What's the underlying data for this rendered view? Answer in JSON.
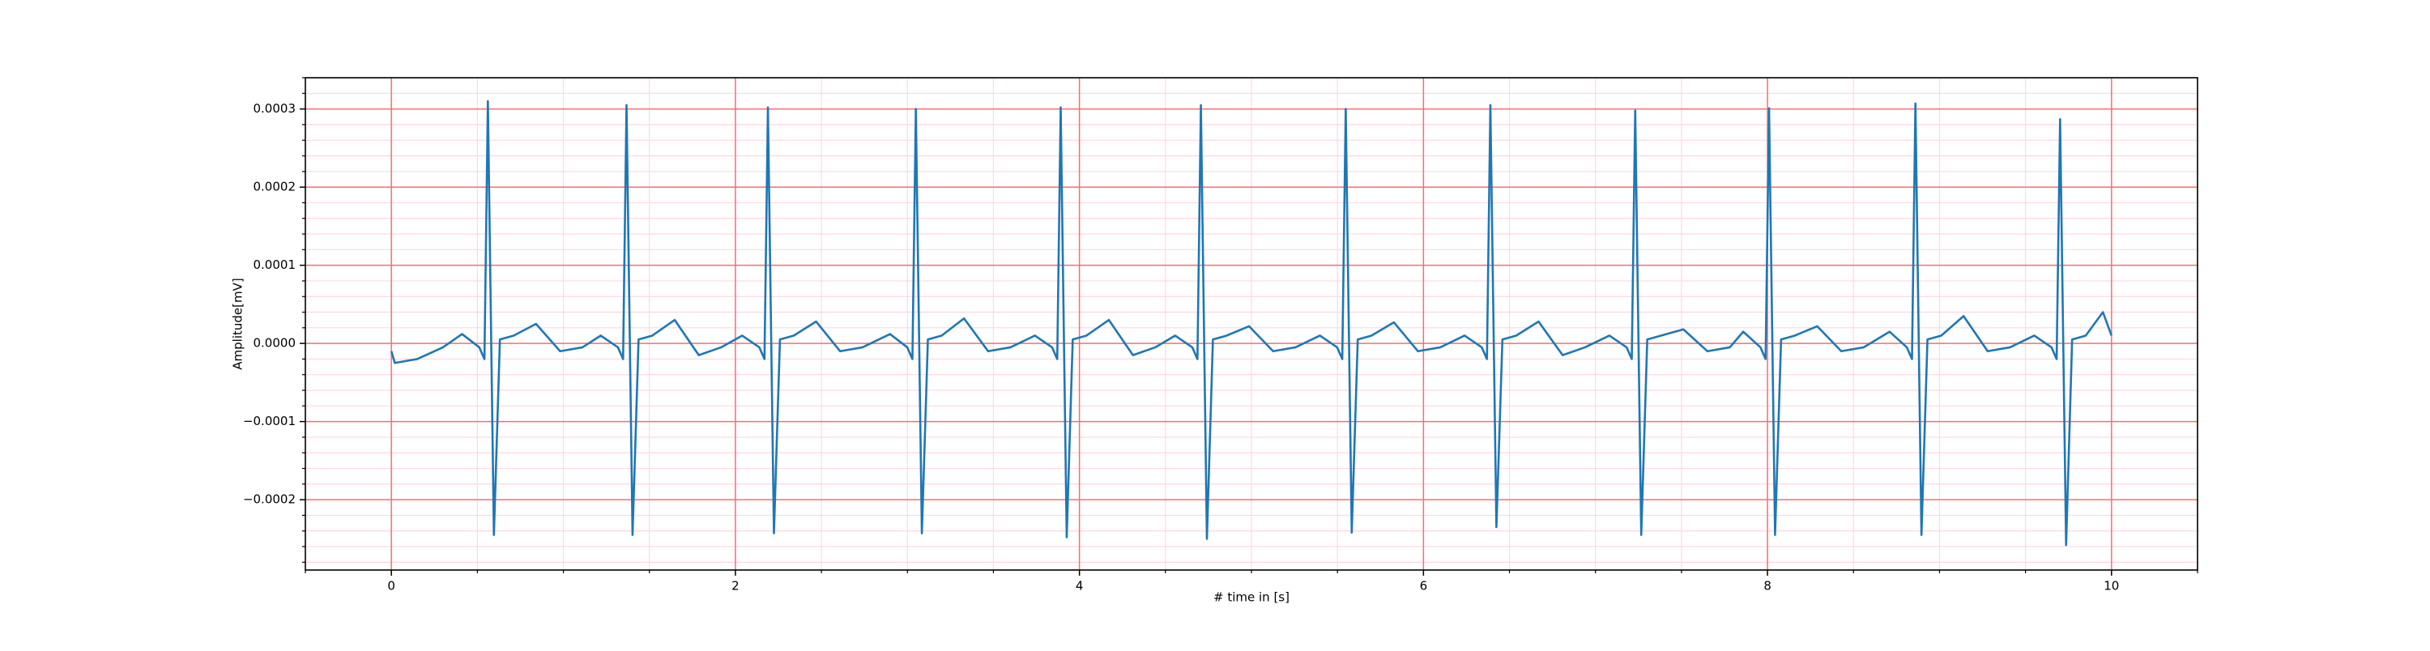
{
  "chart_data": {
    "type": "line",
    "xlabel": "# time in [s]",
    "ylabel": "Amplitude[mV]",
    "color": "#1f77b4",
    "xlim": [
      -0.5,
      10.5
    ],
    "ylim": [
      -0.00029,
      0.00034
    ],
    "xticks": [
      0,
      2,
      4,
      6,
      8,
      10
    ],
    "yticks": [
      {
        "value": -0.0002,
        "label": "−0.0002"
      },
      {
        "value": -0.0001,
        "label": "−0.0001"
      },
      {
        "value": 0,
        "label": "0.0000"
      },
      0.0001,
      0.0002,
      0.0003
    ],
    "xticks_minor": [
      -0.5,
      0.5,
      1,
      1.5,
      2.5,
      3,
      3.5,
      4.5,
      5,
      5.5,
      6.5,
      7,
      7.5,
      8.5,
      9,
      9.5,
      10.5
    ],
    "yticks_minor": [
      -0.00028,
      -0.00026,
      -0.00024,
      -0.00022,
      -0.00018,
      -0.00016,
      -0.00014,
      -0.00012,
      -8e-05,
      -6e-05,
      -4e-05,
      -2e-05,
      2e-05,
      4e-05,
      6e-05,
      8e-05,
      0.00012,
      0.00014,
      0.00016,
      0.00018,
      0.00022,
      0.00024,
      0.00026,
      0.00028,
      0.00032,
      0.00034
    ],
    "grid": true,
    "minor_grid": true,
    "grid_color": "#ff6b6b",
    "minor_grid_color": "#ffd6e6",
    "x": [
      0,
      0.02,
      0.15,
      0.3,
      0.411,
      0.511,
      0.541,
      0.561,
      0.596,
      0.631,
      0.711,
      0.841,
      0.981,
      1.111,
      1.217,
      1.317,
      1.347,
      1.367,
      1.402,
      1.437,
      1.517,
      1.647,
      1.787,
      1.917,
      2.039,
      2.139,
      2.169,
      2.189,
      2.224,
      2.259,
      2.339,
      2.469,
      2.609,
      2.739,
      2.899,
      2.999,
      3.029,
      3.049,
      3.084,
      3.119,
      3.199,
      3.329,
      3.469,
      3.599,
      3.741,
      3.841,
      3.871,
      3.891,
      3.926,
      3.961,
      4.041,
      4.171,
      4.311,
      4.441,
      4.556,
      4.656,
      4.686,
      4.706,
      4.741,
      4.776,
      4.856,
      4.986,
      5.126,
      5.256,
      5.398,
      5.498,
      5.528,
      5.548,
      5.583,
      5.618,
      5.698,
      5.828,
      5.968,
      6.098,
      6.239,
      6.339,
      6.369,
      6.389,
      6.424,
      6.459,
      6.539,
      6.669,
      6.809,
      6.939,
      7.081,
      7.181,
      7.211,
      7.231,
      7.266,
      7.301,
      7.381,
      7.511,
      7.651,
      7.781,
      7.859,
      7.959,
      7.989,
      8.009,
      8.044,
      8.079,
      8.159,
      8.289,
      8.429,
      8.559,
      8.71,
      8.81,
      8.84,
      8.86,
      8.895,
      8.93,
      9.01,
      9.14,
      9.28,
      9.41,
      9.551,
      9.651,
      9.681,
      9.701,
      9.736,
      9.771,
      9.85,
      9.95,
      10.0
    ],
    "values": [
      -1e-05,
      -2.5e-05,
      -2e-05,
      -5e-06,
      1.2e-05,
      -5e-06,
      -2e-05,
      0.00031,
      -0.000245,
      5e-06,
      1e-05,
      2.5e-05,
      -1e-05,
      -5e-06,
      1e-05,
      -5e-06,
      -2e-05,
      0.000305,
      -0.000245,
      5e-06,
      1e-05,
      3e-05,
      -1.5e-05,
      -5e-06,
      1e-05,
      -5e-06,
      -2e-05,
      0.000302,
      -0.000243,
      5e-06,
      1e-05,
      2.8e-05,
      -1e-05,
      -5e-06,
      1.2e-05,
      -5e-06,
      -2e-05,
      0.0003,
      -0.000243,
      5e-06,
      1e-05,
      3.2e-05,
      -1e-05,
      -5e-06,
      1e-05,
      -5e-06,
      -2e-05,
      0.000302,
      -0.000248,
      5e-06,
      1e-05,
      3e-05,
      -1.5e-05,
      -5e-06,
      1e-05,
      -5e-06,
      -2e-05,
      0.000305,
      -0.00025,
      5e-06,
      1e-05,
      2.2e-05,
      -1e-05,
      -5e-06,
      1e-05,
      -5e-06,
      -2e-05,
      0.0003,
      -0.000242,
      5e-06,
      1e-05,
      2.7e-05,
      -1e-05,
      -5e-06,
      1e-05,
      -5e-06,
      -2e-05,
      0.000305,
      -0.000235,
      5e-06,
      1e-05,
      2.8e-05,
      -1.5e-05,
      -5e-06,
      1e-05,
      -5e-06,
      -2e-05,
      0.000298,
      -0.000245,
      5e-06,
      1e-05,
      1.8e-05,
      -1e-05,
      -5e-06,
      1.5e-05,
      -5e-06,
      -2e-05,
      0.000301,
      -0.000245,
      5e-06,
      1e-05,
      2.2e-05,
      -1e-05,
      -5e-06,
      1.5e-05,
      -5e-06,
      -2e-05,
      0.000307,
      -0.000245,
      5e-06,
      1e-05,
      3.5e-05,
      -1e-05,
      -5e-06,
      1e-05,
      -5e-06,
      -2e-05,
      0.000287,
      -0.000258,
      5e-06,
      1e-05,
      4e-05,
      1e-05
    ]
  }
}
